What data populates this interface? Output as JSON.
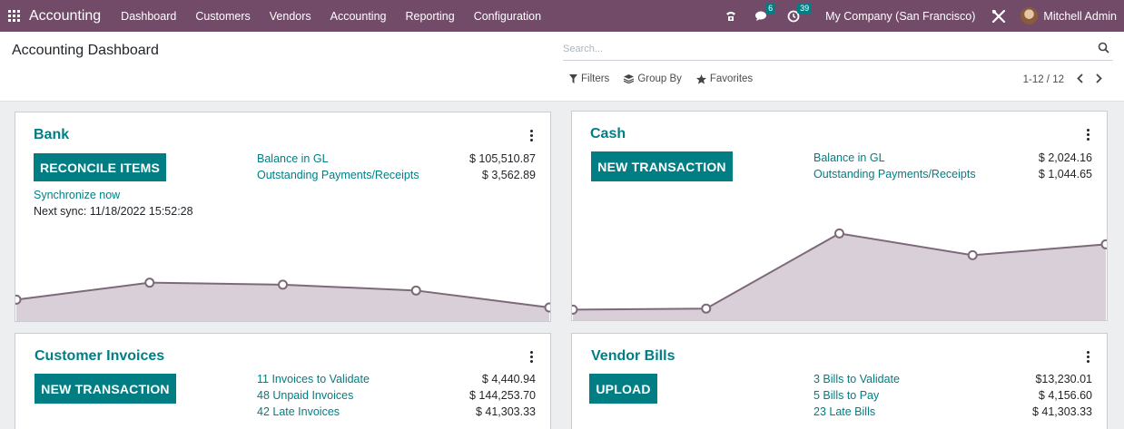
{
  "app": {
    "title": "Accounting",
    "menu": [
      "Dashboard",
      "Customers",
      "Vendors",
      "Accounting",
      "Reporting",
      "Configuration"
    ],
    "messages_count": "6",
    "activities_count": "39",
    "company": "My Company (San Francisco)",
    "user": "Mitchell Admin"
  },
  "control": {
    "title": "Accounting Dashboard",
    "search_placeholder": "Search...",
    "filters_label": "Filters",
    "groupby_label": "Group By",
    "favorites_label": "Favorites",
    "pager": "1-12 / 12"
  },
  "cards": {
    "bank": {
      "title": "Bank",
      "button": "RECONCILE ITEMS",
      "sync_link": "Synchronize now",
      "next_sync": "Next sync: 11/18/2022 15:52:28",
      "stats": [
        {
          "label": "Balance in GL",
          "value": "$ 105,510.87"
        },
        {
          "label": "Outstanding Payments/Receipts",
          "value": "$ 3,562.89"
        }
      ],
      "graph_values": [
        0.3,
        0.56,
        0.53,
        0.44,
        0.18
      ]
    },
    "cash": {
      "title": "Cash",
      "button": "NEW TRANSACTION",
      "stats": [
        {
          "label": "Balance in GL",
          "value": "$ 2,024.16"
        },
        {
          "label": "Outstanding Payments/Receipts",
          "value": "$ 1,044.65"
        }
      ],
      "graph_values": [
        0.08,
        0.09,
        0.78,
        0.58,
        0.68
      ]
    },
    "customer_invoices": {
      "title": "Customer Invoices",
      "button": "NEW TRANSACTION",
      "stats": [
        {
          "label": "11 Invoices to Validate",
          "value": "$ 4,440.94"
        },
        {
          "label": "48 Unpaid Invoices",
          "value": "$ 144,253.70"
        },
        {
          "label": "42 Late Invoices",
          "value": "$ 41,303.33"
        }
      ]
    },
    "vendor_bills": {
      "title": "Vendor Bills",
      "button": "UPLOAD",
      "stats": [
        {
          "label": "3 Bills to Validate",
          "value": "$13,230.01"
        },
        {
          "label": "5 Bills to Pay",
          "value": "$ 4,156.60"
        },
        {
          "label": "23 Late Bills",
          "value": "$ 41,303.33"
        }
      ]
    }
  },
  "colors": {
    "navbar": "#714b67",
    "accent": "#017e84",
    "graph_fill": "#d9cfd8",
    "graph_line": "#7d6a79"
  }
}
